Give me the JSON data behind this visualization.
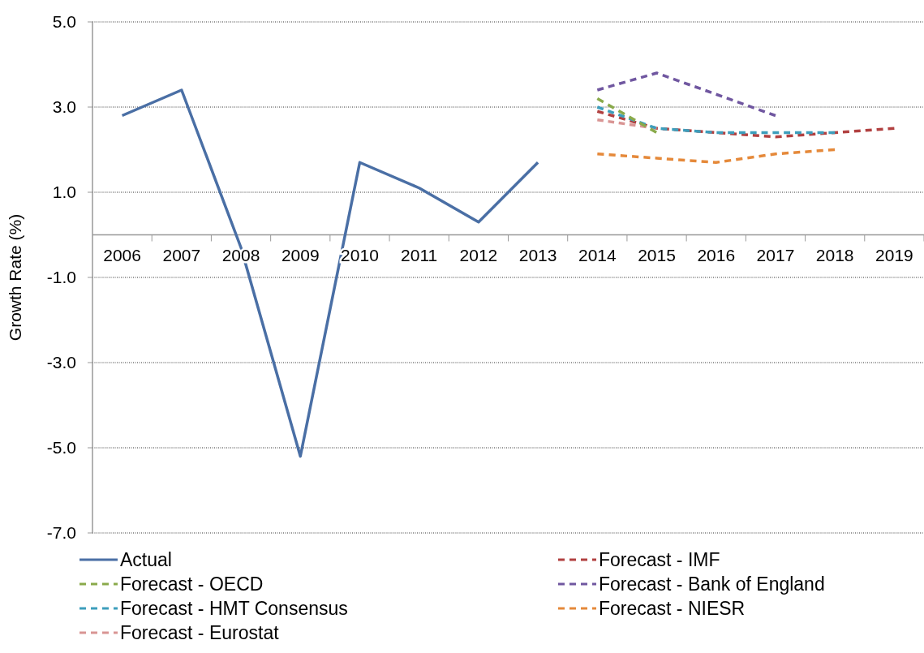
{
  "chart_data": {
    "type": "line",
    "ylabel": "Growth Rate (%)",
    "categories": [
      "2006",
      "2007",
      "2008",
      "2009",
      "2010",
      "2011",
      "2012",
      "2013",
      "2014",
      "2015",
      "2016",
      "2017",
      "2018",
      "2019"
    ],
    "ylim": [
      -7,
      5
    ],
    "yticks": [
      {
        "value": -7,
        "label": "-7.0"
      },
      {
        "value": -5,
        "label": "-5.0"
      },
      {
        "value": -3,
        "label": "-3.0"
      },
      {
        "value": -1,
        "label": "-1.0"
      },
      {
        "value": 1,
        "label": "1.0"
      },
      {
        "value": 3,
        "label": "3.0"
      },
      {
        "value": 5,
        "label": "5.0"
      }
    ],
    "grid": "y",
    "legend": "bottom",
    "marker": "none",
    "line_style": "dashed",
    "series": [
      {
        "name": "Actual",
        "color": "#4a6fa5",
        "line_style": "solid",
        "values": [
          2.8,
          3.4,
          -0.3,
          -5.2,
          1.7,
          1.1,
          0.3,
          1.7,
          null,
          null,
          null,
          null,
          null,
          null
        ]
      },
      {
        "name": "Forecast - OECD",
        "color": "#8aaa4b",
        "values": [
          null,
          null,
          null,
          null,
          null,
          null,
          null,
          null,
          3.2,
          2.4,
          null,
          null,
          null,
          null
        ]
      },
      {
        "name": "Forecast - HMT Consensus",
        "color": "#3d9ebc",
        "values": [
          null,
          null,
          null,
          null,
          null,
          null,
          null,
          null,
          3.0,
          2.5,
          2.4,
          2.4,
          2.4,
          null
        ]
      },
      {
        "name": "Forecast - Eurostat",
        "color": "#d99594",
        "values": [
          null,
          null,
          null,
          null,
          null,
          null,
          null,
          null,
          2.7,
          2.5,
          null,
          null,
          null,
          null
        ]
      },
      {
        "name": "Forecast - IMF",
        "color": "#b14040",
        "values": [
          null,
          null,
          null,
          null,
          null,
          null,
          null,
          null,
          2.9,
          2.5,
          2.4,
          2.3,
          2.4,
          2.5
        ]
      },
      {
        "name": "Forecast - Bank of England",
        "color": "#7057a0",
        "values": [
          null,
          null,
          null,
          null,
          null,
          null,
          null,
          null,
          3.4,
          3.8,
          3.3,
          2.8,
          null,
          null
        ]
      },
      {
        "name": "Forecast - NIESR",
        "color": "#e5893a",
        "values": [
          null,
          null,
          null,
          null,
          null,
          null,
          null,
          null,
          1.9,
          1.8,
          1.7,
          1.9,
          2.0,
          null
        ]
      }
    ]
  }
}
